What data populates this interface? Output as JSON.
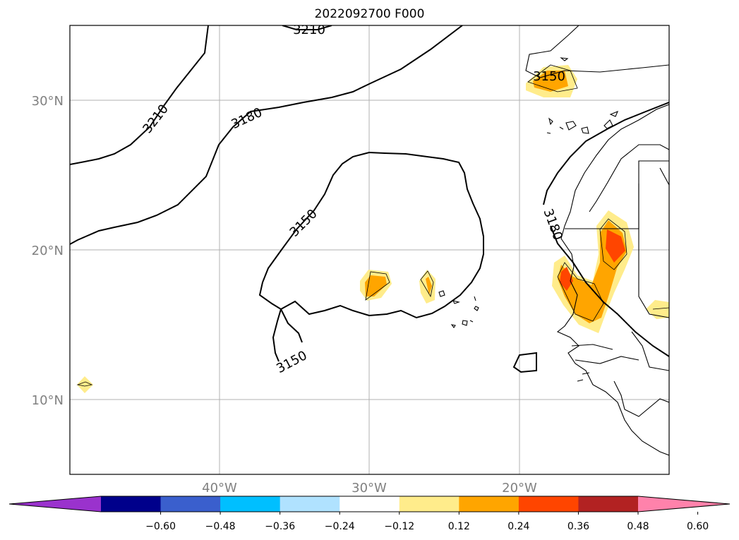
{
  "title": "2022092700 F000",
  "lat_labels": [
    "30°N",
    "20°N",
    "10°N"
  ],
  "lon_labels": [
    "40°W",
    "30°W",
    "20°W"
  ],
  "contour_labels": [
    "3210",
    "3210",
    "3180",
    "3150",
    "3150",
    "3150",
    "3180"
  ],
  "colorbar": {
    "ticks": [
      "−0.60",
      "−0.48",
      "−0.36",
      "−0.24",
      "−0.12",
      "0.12",
      "0.24",
      "0.36",
      "0.48",
      "0.60"
    ],
    "colors": [
      "#9a32cd",
      "#00008b",
      "#3a5fcd",
      "#00bfff",
      "#b0e2ff",
      "#ffffff",
      "#ffec8b",
      "#ffa500",
      "#ff4500",
      "#b22222",
      "#ff82ab"
    ]
  },
  "colors": {
    "grid": "#b0b0b0",
    "contour": "#000000",
    "axis_label": "#808080"
  }
}
